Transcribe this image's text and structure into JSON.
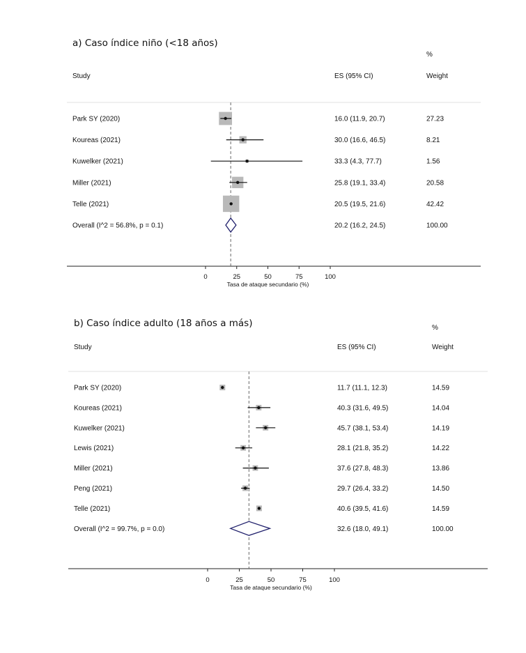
{
  "chart_data": [
    {
      "type": "forest",
      "title": "a) Caso índice niño (<18 años)",
      "headers": {
        "study": "Study",
        "es": "ES (95% CI)",
        "weight_top": "%",
        "weight": "Weight"
      },
      "xlabel": "Tasa de ataque secundario (%)",
      "xticks": [
        0,
        25,
        50,
        75,
        100
      ],
      "xlim": [
        0,
        100
      ],
      "studies": [
        {
          "label": "Park SY (2020)",
          "es": 16.0,
          "lo": 11.9,
          "hi": 20.7,
          "es_text": "16.0 (11.9, 20.7)",
          "weight": 27.23,
          "weight_text": "27.23"
        },
        {
          "label": "Koureas (2021)",
          "es": 30.0,
          "lo": 16.6,
          "hi": 46.5,
          "es_text": "30.0 (16.6, 46.5)",
          "weight": 8.21,
          "weight_text": "8.21"
        },
        {
          "label": "Kuwelker (2021)",
          "es": 33.3,
          "lo": 4.3,
          "hi": 77.7,
          "es_text": "33.3 (4.3, 77.7)",
          "weight": 1.56,
          "weight_text": "1.56"
        },
        {
          "label": "Miller (2021)",
          "es": 25.8,
          "lo": 19.1,
          "hi": 33.4,
          "es_text": "25.8 (19.1, 33.4)",
          "weight": 20.58,
          "weight_text": "20.58"
        },
        {
          "label": "Telle (2021)",
          "es": 20.5,
          "lo": 19.5,
          "hi": 21.6,
          "es_text": "20.5 (19.5, 21.6)",
          "weight": 42.42,
          "weight_text": "42.42"
        }
      ],
      "overall": {
        "label": "Overall  (I^2 = 56.8%, p = 0.1)",
        "es": 20.2,
        "lo": 16.2,
        "hi": 24.5,
        "es_text": "20.2 (16.2, 24.5)",
        "weight_text": "100.00"
      }
    },
    {
      "type": "forest",
      "title": "b) Caso índice adulto (18 años a más)",
      "headers": {
        "study": "Study",
        "es": "ES (95% CI)",
        "weight_top": "%",
        "weight": "Weight"
      },
      "xlabel": "Tasa de ataque secundario (%)",
      "xticks": [
        0,
        25,
        50,
        75,
        100
      ],
      "xlim": [
        0,
        100
      ],
      "studies": [
        {
          "label": "Park SY (2020)",
          "es": 11.7,
          "lo": 11.1,
          "hi": 12.3,
          "es_text": "11.7 (11.1, 12.3)",
          "weight": 14.59,
          "weight_text": "14.59"
        },
        {
          "label": "Koureas (2021)",
          "es": 40.3,
          "lo": 31.6,
          "hi": 49.5,
          "es_text": "40.3 (31.6, 49.5)",
          "weight": 14.04,
          "weight_text": "14.04"
        },
        {
          "label": "Kuwelker (2021)",
          "es": 45.7,
          "lo": 38.1,
          "hi": 53.4,
          "es_text": "45.7 (38.1, 53.4)",
          "weight": 14.19,
          "weight_text": "14.19"
        },
        {
          "label": "Lewis (2021)",
          "es": 28.1,
          "lo": 21.8,
          "hi": 35.2,
          "es_text": "28.1 (21.8, 35.2)",
          "weight": 14.22,
          "weight_text": "14.22"
        },
        {
          "label": "Miller (2021)",
          "es": 37.6,
          "lo": 27.8,
          "hi": 48.3,
          "es_text": "37.6 (27.8, 48.3)",
          "weight": 13.86,
          "weight_text": "13.86"
        },
        {
          "label": "Peng (2021)",
          "es": 29.7,
          "lo": 26.4,
          "hi": 33.2,
          "es_text": "29.7 (26.4, 33.2)",
          "weight": 14.5,
          "weight_text": "14.50"
        },
        {
          "label": "Telle (2021)",
          "es": 40.6,
          "lo": 39.5,
          "hi": 41.6,
          "es_text": "40.6 (39.5, 41.6)",
          "weight": 14.59,
          "weight_text": "14.59"
        }
      ],
      "overall": {
        "label": "Overall  (I^2 = 99.7%, p = 0.0)",
        "es": 32.6,
        "lo": 18.0,
        "hi": 49.1,
        "es_text": "32.6 (18.0, 49.1)",
        "weight_text": "100.00"
      }
    }
  ]
}
